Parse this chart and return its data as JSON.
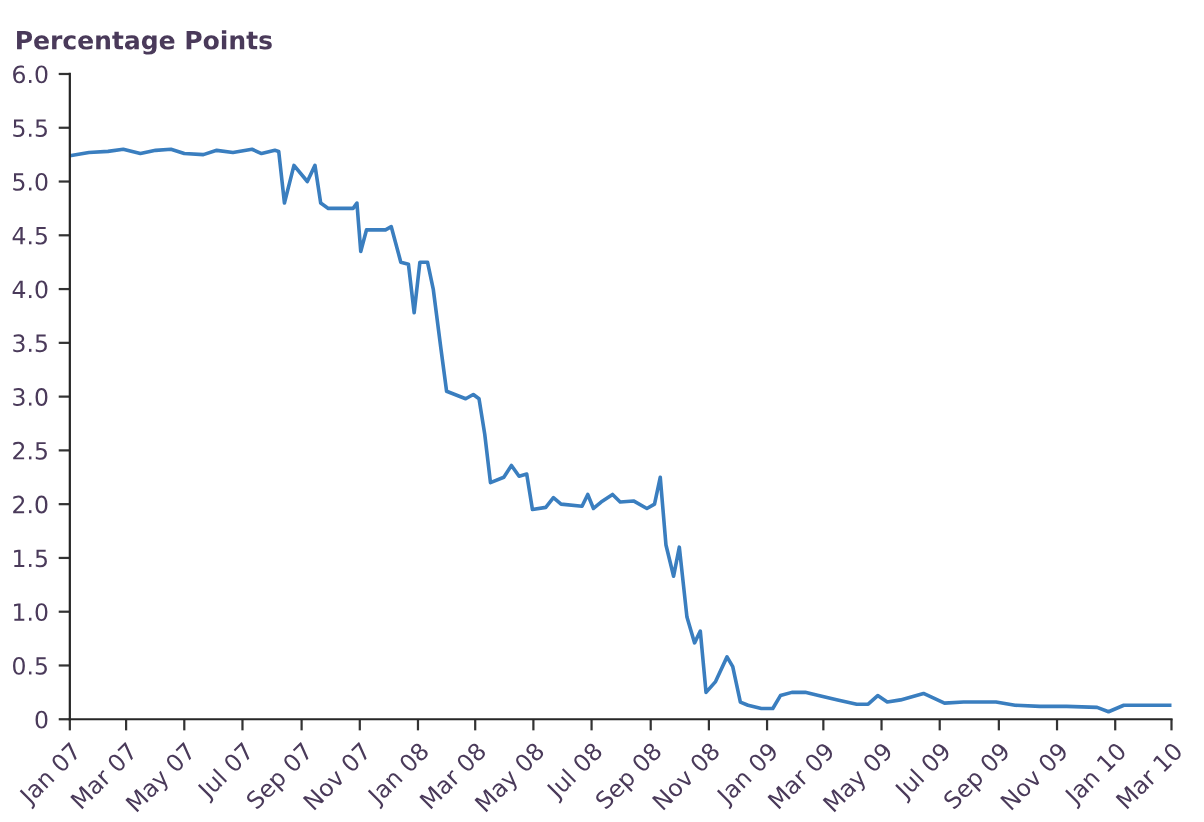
{
  "chart_data": {
    "type": "line",
    "ylabel": "Percentage Points",
    "x": [
      "2007-01-01",
      "2007-01-21",
      "2007-02-10",
      "2007-02-26",
      "2007-03-16",
      "2007-04-01",
      "2007-04-17",
      "2007-05-01",
      "2007-05-21",
      "2007-06-04",
      "2007-06-21",
      "2007-07-11",
      "2007-07-21",
      "2007-08-04",
      "2007-08-08",
      "2007-08-14",
      "2007-08-24",
      "2007-09-07",
      "2007-09-15",
      "2007-09-21",
      "2007-09-29",
      "2007-10-25",
      "2007-10-29",
      "2007-11-02",
      "2007-11-08",
      "2007-11-28",
      "2007-12-04",
      "2007-12-14",
      "2007-12-22",
      "2007-12-28",
      "2008-01-03",
      "2008-01-11",
      "2008-01-17",
      "2008-01-25",
      "2008-01-31",
      "2008-02-20",
      "2008-02-28",
      "2008-03-05",
      "2008-03-11",
      "2008-03-17",
      "2008-03-31",
      "2008-04-08",
      "2008-04-16",
      "2008-04-24",
      "2008-04-30",
      "2008-05-14",
      "2008-05-22",
      "2008-05-30",
      "2008-06-21",
      "2008-06-27",
      "2008-07-03",
      "2008-07-11",
      "2008-07-23",
      "2008-07-31",
      "2008-08-14",
      "2008-08-28",
      "2008-09-05",
      "2008-09-11",
      "2008-09-17",
      "2008-09-25",
      "2008-10-01",
      "2008-10-09",
      "2008-10-17",
      "2008-10-23",
      "2008-10-29",
      "2008-11-08",
      "2008-11-20",
      "2008-11-26",
      "2008-12-04",
      "2008-12-12",
      "2008-12-26",
      "2009-01-07",
      "2009-01-15",
      "2009-01-27",
      "2009-02-10",
      "2009-02-24",
      "2009-03-16",
      "2009-04-05",
      "2009-04-17",
      "2009-04-27",
      "2009-05-07",
      "2009-05-21",
      "2009-06-14",
      "2009-07-06",
      "2009-07-26",
      "2009-08-29",
      "2009-09-18",
      "2009-10-14",
      "2009-11-11",
      "2009-12-13",
      "2009-12-25",
      "2010-01-10",
      "2010-03-01"
    ],
    "series": [
      {
        "color": "#3a7ebf",
        "values": [
          5.24,
          5.27,
          5.28,
          5.3,
          5.26,
          5.29,
          5.3,
          5.26,
          5.25,
          5.29,
          5.27,
          5.3,
          5.26,
          5.29,
          5.28,
          4.8,
          5.15,
          5.0,
          5.15,
          4.8,
          4.75,
          4.75,
          4.8,
          4.35,
          4.55,
          4.55,
          4.58,
          4.25,
          4.23,
          3.78,
          4.25,
          4.25,
          4.0,
          3.45,
          3.05,
          2.98,
          3.02,
          2.98,
          2.65,
          2.2,
          2.25,
          2.36,
          2.26,
          2.28,
          1.95,
          1.97,
          2.06,
          2.0,
          1.98,
          2.09,
          1.96,
          2.02,
          2.09,
          2.02,
          2.03,
          1.96,
          2.0,
          2.25,
          1.62,
          1.33,
          1.6,
          0.95,
          0.71,
          0.82,
          0.25,
          0.35,
          0.58,
          0.49,
          0.16,
          0.13,
          0.1,
          0.1,
          0.22,
          0.25,
          0.25,
          0.22,
          0.18,
          0.14,
          0.14,
          0.22,
          0.16,
          0.18,
          0.24,
          0.15,
          0.16,
          0.16,
          0.13,
          0.12,
          0.12,
          0.11,
          0.07,
          0.13,
          0.13
        ]
      }
    ],
    "xlim": [
      "2007-01-01",
      "2010-03-01"
    ],
    "xticks": [
      {
        "value": "2007-01-01",
        "label": "Jan 07"
      },
      {
        "value": "2007-03-01",
        "label": "Mar 07"
      },
      {
        "value": "2007-05-01",
        "label": "May 07"
      },
      {
        "value": "2007-07-01",
        "label": "Jul 07"
      },
      {
        "value": "2007-09-01",
        "label": "Sep 07"
      },
      {
        "value": "2007-11-01",
        "label": "Nov 07"
      },
      {
        "value": "2008-01-01",
        "label": "Jan 08"
      },
      {
        "value": "2008-03-01",
        "label": "Mar 08"
      },
      {
        "value": "2008-05-01",
        "label": "May 08"
      },
      {
        "value": "2008-07-01",
        "label": "Jul 08"
      },
      {
        "value": "2008-09-01",
        "label": "Sep 08"
      },
      {
        "value": "2008-11-01",
        "label": "Nov 08"
      },
      {
        "value": "2009-01-01",
        "label": "Jan 09"
      },
      {
        "value": "2009-03-01",
        "label": "Mar 09"
      },
      {
        "value": "2009-05-01",
        "label": "May 09"
      },
      {
        "value": "2009-07-01",
        "label": "Jul 09"
      },
      {
        "value": "2009-09-01",
        "label": "Sep 09"
      },
      {
        "value": "2009-11-01",
        "label": "Nov 09"
      },
      {
        "value": "2010-01-01",
        "label": "Jan 10"
      },
      {
        "value": "2010-03-01",
        "label": "Mar 10"
      }
    ],
    "ylim": [
      0,
      6
    ],
    "yticks": [
      0,
      {
        "value": 0.5,
        "label": "0.5"
      },
      {
        "value": 1,
        "label": "1.0"
      },
      {
        "value": 1.5,
        "label": "1.5"
      },
      {
        "value": 2,
        "label": "2.0"
      },
      {
        "value": 2.5,
        "label": "2.5"
      },
      {
        "value": 3,
        "label": "3.0"
      },
      {
        "value": 3.5,
        "label": "3.5"
      },
      {
        "value": 4,
        "label": "4.0"
      },
      {
        "value": 4.5,
        "label": "4.5"
      },
      {
        "value": 5,
        "label": "5.0"
      },
      {
        "value": 5.5,
        "label": "5.5"
      },
      {
        "value": 6,
        "label": "6.0"
      }
    ],
    "grid": false,
    "marker": "none",
    "line_style": "solid"
  }
}
